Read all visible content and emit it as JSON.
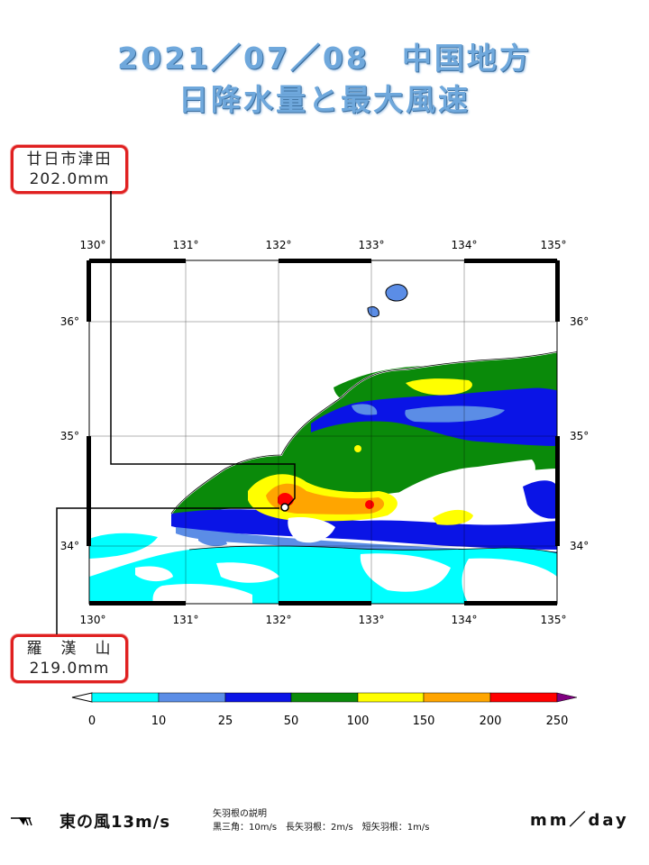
{
  "header": {
    "title_line1": "2021／07／08　中国地方",
    "title_line2": "日降水量と最大風速"
  },
  "callouts": [
    {
      "name": "廿日市津田",
      "value": "202.0mm"
    },
    {
      "name": "羅　漢　山",
      "value": "219.0mm"
    }
  ],
  "map": {
    "lon_labels": [
      "130°",
      "131°",
      "132°",
      "133°",
      "134°",
      "135°"
    ],
    "lat_labels": [
      "36°",
      "35°",
      "34°"
    ],
    "lon_range": [
      130,
      135
    ],
    "lat_range": [
      33.5,
      36.5
    ]
  },
  "legend": {
    "tick_labels": [
      "0",
      "10",
      "25",
      "50",
      "100",
      "150",
      "200",
      "250"
    ],
    "colors": [
      "#00ffff",
      "#5b8de6",
      "#0a14e6",
      "#0a8a0a",
      "#ffff00",
      "#ffa500",
      "#ff0000",
      "#800080"
    ],
    "background_color": "#ffffff"
  },
  "footer": {
    "wind_arrow_icon": "wind-barb-icon",
    "wind_label": "東の風13m/s",
    "barb_explanation_title": "矢羽根の説明",
    "barb_explanation": "黒三角：10m/s　長矢羽根：2m/s　短矢羽根：1m/s",
    "unit": "mm／day"
  }
}
